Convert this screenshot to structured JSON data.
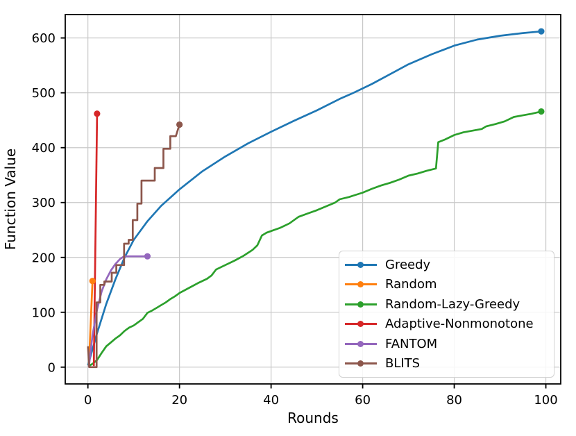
{
  "figure": {
    "background": "#ffffff",
    "text_color": "#000000",
    "grid_color": "#c8c8c8"
  },
  "chart_data": {
    "type": "line",
    "title": "",
    "xlabel": "Rounds",
    "ylabel": "Function Value",
    "xlim": [
      -4.95,
      103.25
    ],
    "ylim": [
      -30.6,
      642.6
    ],
    "xticks": [
      0,
      20,
      40,
      60,
      80,
      100
    ],
    "yticks": [
      0,
      100,
      200,
      300,
      400,
      500,
      600
    ],
    "grid": true,
    "legend_position": "lower-right-inside",
    "series": [
      {
        "name": "Greedy",
        "color": "#1f77b4",
        "marker": [
          99,
          612
        ],
        "points": [
          [
            0,
            3
          ],
          [
            2,
            62
          ],
          [
            4,
            115
          ],
          [
            6,
            160
          ],
          [
            8,
            200
          ],
          [
            10,
            232
          ],
          [
            13,
            266
          ],
          [
            16,
            294
          ],
          [
            20,
            324
          ],
          [
            25,
            357
          ],
          [
            30,
            384
          ],
          [
            35,
            408
          ],
          [
            40,
            429
          ],
          [
            45,
            449
          ],
          [
            50,
            468
          ],
          [
            55,
            489
          ],
          [
            58,
            500
          ],
          [
            62,
            516
          ],
          [
            66,
            534
          ],
          [
            70,
            552
          ],
          [
            75,
            570
          ],
          [
            80,
            586
          ],
          [
            85,
            597
          ],
          [
            90,
            604
          ],
          [
            95,
            609
          ],
          [
            99,
            612
          ]
        ]
      },
      {
        "name": "Random",
        "color": "#ff7f0e",
        "marker": [
          1,
          157
        ],
        "points": [
          [
            0.2,
            1
          ],
          [
            1,
            157
          ]
        ]
      },
      {
        "name": "Random-Lazy-Greedy",
        "color": "#2ca02c",
        "marker": [
          99,
          466
        ],
        "points": [
          [
            0.2,
            2
          ],
          [
            1,
            6
          ],
          [
            2,
            13
          ],
          [
            3,
            26
          ],
          [
            4,
            38
          ],
          [
            5,
            45
          ],
          [
            6,
            52
          ],
          [
            7,
            58
          ],
          [
            8,
            66
          ],
          [
            9,
            72
          ],
          [
            10,
            76
          ],
          [
            11,
            82
          ],
          [
            12,
            88
          ],
          [
            13,
            99
          ],
          [
            14,
            103
          ],
          [
            15,
            108
          ],
          [
            16,
            113
          ],
          [
            17,
            118
          ],
          [
            18,
            124
          ],
          [
            19,
            129
          ],
          [
            20,
            135
          ],
          [
            22,
            144
          ],
          [
            24,
            153
          ],
          [
            26,
            161
          ],
          [
            27,
            167
          ],
          [
            28,
            178
          ],
          [
            30,
            186
          ],
          [
            32,
            194
          ],
          [
            34,
            203
          ],
          [
            36,
            214
          ],
          [
            37,
            222
          ],
          [
            38,
            240
          ],
          [
            39,
            245
          ],
          [
            40,
            248
          ],
          [
            42,
            254
          ],
          [
            44,
            262
          ],
          [
            46,
            274
          ],
          [
            48,
            280
          ],
          [
            50,
            286
          ],
          [
            52,
            293
          ],
          [
            54,
            300
          ],
          [
            55,
            306
          ],
          [
            57,
            310
          ],
          [
            60,
            318
          ],
          [
            62,
            325
          ],
          [
            64,
            331
          ],
          [
            66,
            336
          ],
          [
            68,
            342
          ],
          [
            70,
            349
          ],
          [
            72,
            353
          ],
          [
            74,
            358
          ],
          [
            76,
            362
          ],
          [
            76.5,
            410
          ],
          [
            78,
            415
          ],
          [
            80,
            423
          ],
          [
            82,
            428
          ],
          [
            84,
            431
          ],
          [
            86,
            434
          ],
          [
            87,
            439
          ],
          [
            89,
            443
          ],
          [
            91,
            448
          ],
          [
            93,
            456
          ],
          [
            95,
            459
          ],
          [
            97,
            462
          ],
          [
            99,
            466
          ]
        ]
      },
      {
        "name": "Adaptive-Nonmonotone",
        "color": "#d62728",
        "marker": [
          2,
          462
        ],
        "points": [
          [
            1.3,
            2
          ],
          [
            2,
            462
          ]
        ]
      },
      {
        "name": "FANTOM",
        "color": "#9467bd",
        "marker": [
          13,
          202
        ],
        "points": [
          [
            0.2,
            0
          ],
          [
            1,
            58
          ],
          [
            2,
            105
          ],
          [
            3,
            138
          ],
          [
            4,
            160
          ],
          [
            5,
            176
          ],
          [
            6,
            188
          ],
          [
            7,
            197
          ],
          [
            7.9,
            202
          ],
          [
            13,
            202
          ]
        ]
      },
      {
        "name": "BLITS",
        "color": "#8c564b",
        "marker": [
          20,
          442
        ],
        "points": [
          [
            0,
            38
          ],
          [
            0.3,
            0
          ],
          [
            1.9,
            0
          ],
          [
            1.9,
            118
          ],
          [
            2.7,
            118
          ],
          [
            2.7,
            150
          ],
          [
            3.6,
            150
          ],
          [
            3.6,
            156
          ],
          [
            5.2,
            156
          ],
          [
            5.2,
            172
          ],
          [
            6.2,
            172
          ],
          [
            6.2,
            186
          ],
          [
            7.9,
            186
          ],
          [
            7.9,
            225
          ],
          [
            8.9,
            225
          ],
          [
            8.9,
            232
          ],
          [
            9.8,
            232
          ],
          [
            9.8,
            268
          ],
          [
            10.8,
            268
          ],
          [
            10.8,
            298
          ],
          [
            11.7,
            298
          ],
          [
            11.7,
            340
          ],
          [
            14.6,
            340
          ],
          [
            14.6,
            363
          ],
          [
            16.5,
            363
          ],
          [
            16.5,
            398
          ],
          [
            18,
            398
          ],
          [
            18,
            421
          ],
          [
            19.2,
            421
          ],
          [
            20,
            442
          ]
        ]
      }
    ]
  }
}
